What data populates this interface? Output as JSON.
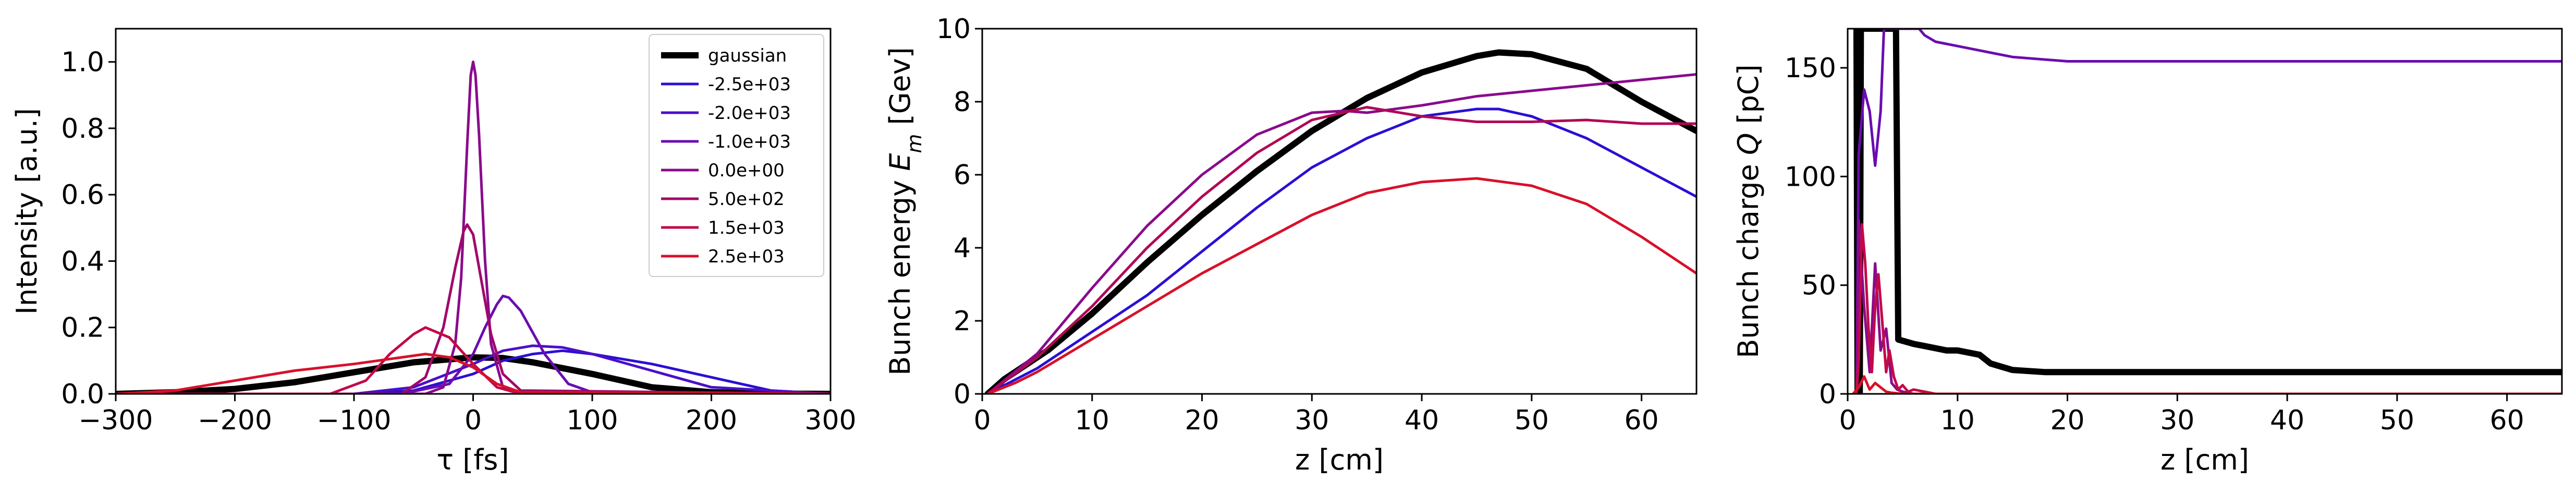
{
  "chart_data": [
    {
      "type": "line",
      "xlabel": "τ [fs]",
      "ylabel": "Intensity [a.u.]",
      "xlim": [
        -300,
        300
      ],
      "ylim": [
        0,
        1.1
      ],
      "xticks": [
        -300,
        -200,
        -100,
        0,
        100,
        200,
        300
      ],
      "xtick_labels": [
        "−300",
        "−200",
        "−100",
        "0",
        "100",
        "200",
        "300"
      ],
      "yticks": [
        0.0,
        0.2,
        0.4,
        0.6,
        0.8,
        1.0
      ],
      "ytick_labels": [
        "0.0",
        "0.2",
        "0.4",
        "0.6",
        "0.8",
        "1.0"
      ],
      "legend_position": "top-right",
      "series": [
        {
          "name": "gaussian",
          "color": "#000000",
          "bold": true,
          "x": [
            -300,
            -250,
            -200,
            -150,
            -100,
            -50,
            0,
            25,
            50,
            100,
            150,
            200,
            250,
            300
          ],
          "values": [
            0,
            0.005,
            0.015,
            0.035,
            0.065,
            0.095,
            0.11,
            0.108,
            0.095,
            0.06,
            0.02,
            0.005,
            0.001,
            0
          ]
        },
        {
          "name": "-2.5e+03",
          "color": "#2a0fd4",
          "x": [
            -300,
            -100,
            -50,
            0,
            25,
            50,
            75,
            100,
            150,
            200,
            250,
            300
          ],
          "values": [
            0,
            0,
            0.01,
            0.06,
            0.1,
            0.12,
            0.13,
            0.12,
            0.09,
            0.05,
            0.01,
            0
          ]
        },
        {
          "name": "-2.0e+03",
          "color": "#4a0fc8",
          "x": [
            -300,
            -100,
            -50,
            0,
            25,
            50,
            75,
            100,
            150,
            200,
            300
          ],
          "values": [
            0,
            0,
            0.02,
            0.09,
            0.13,
            0.145,
            0.14,
            0.12,
            0.07,
            0.02,
            0
          ]
        },
        {
          "name": "-1.0e+03",
          "color": "#6a0db0",
          "x": [
            -300,
            -60,
            -20,
            0,
            10,
            20,
            25,
            30,
            40,
            60,
            80,
            100,
            300
          ],
          "values": [
            0,
            0,
            0.03,
            0.12,
            0.2,
            0.27,
            0.295,
            0.29,
            0.25,
            0.12,
            0.03,
            0.005,
            0
          ]
        },
        {
          "name": "0.0e+00",
          "color": "#8a0a8c",
          "x": [
            -300,
            -40,
            -25,
            -15,
            -10,
            -5,
            -2,
            0,
            2,
            5,
            10,
            15,
            25,
            40,
            300
          ],
          "values": [
            0,
            0,
            0.02,
            0.15,
            0.35,
            0.75,
            0.96,
            1.0,
            0.96,
            0.78,
            0.4,
            0.15,
            0.02,
            0,
            0
          ]
        },
        {
          "name": "5.0e+02",
          "color": "#a0086a",
          "x": [
            -300,
            -60,
            -40,
            -25,
            -15,
            -8,
            -5,
            0,
            5,
            15,
            25,
            40,
            300
          ],
          "values": [
            0,
            0,
            0.05,
            0.2,
            0.38,
            0.49,
            0.51,
            0.48,
            0.38,
            0.18,
            0.06,
            0.01,
            0
          ]
        },
        {
          "name": "1.5e+03",
          "color": "#c20a48",
          "x": [
            -300,
            -120,
            -90,
            -70,
            -50,
            -40,
            -20,
            0,
            20,
            40,
            300
          ],
          "values": [
            0,
            0,
            0.04,
            0.12,
            0.18,
            0.2,
            0.17,
            0.09,
            0.02,
            0,
            0
          ]
        },
        {
          "name": "2.5e+03",
          "color": "#d8102a",
          "x": [
            -300,
            -250,
            -200,
            -150,
            -100,
            -60,
            -40,
            -20,
            0,
            20,
            40,
            300
          ],
          "values": [
            0,
            0.01,
            0.04,
            0.07,
            0.09,
            0.11,
            0.12,
            0.11,
            0.08,
            0.03,
            0.005,
            0
          ]
        }
      ]
    },
    {
      "type": "line",
      "xlabel": "z [cm]",
      "ylabel": "Bunch energy E_m [Gev]",
      "ylabel_prefix": "Bunch energy ",
      "ylabel_symbol": "E",
      "ylabel_subscript": "m",
      "ylabel_suffix": " [Gev]",
      "xlim": [
        0,
        65
      ],
      "ylim": [
        0,
        10
      ],
      "xticks": [
        0,
        10,
        20,
        30,
        40,
        50,
        60
      ],
      "xtick_labels": [
        "0",
        "10",
        "20",
        "30",
        "40",
        "50",
        "60"
      ],
      "yticks": [
        0,
        2,
        4,
        6,
        8,
        10
      ],
      "ytick_labels": [
        "0",
        "2",
        "4",
        "6",
        "8",
        "10"
      ],
      "series": [
        {
          "name": "gaussian",
          "color": "#000000",
          "bold": true,
          "x": [
            0.5,
            2,
            4,
            6,
            10,
            15,
            20,
            25,
            30,
            35,
            40,
            45,
            47,
            50,
            55,
            60,
            65
          ],
          "values": [
            0,
            0.4,
            0.8,
            1.2,
            2.2,
            3.6,
            4.9,
            6.1,
            7.2,
            8.1,
            8.8,
            9.25,
            9.35,
            9.3,
            8.9,
            8.0,
            7.2
          ]
        },
        {
          "name": "-2.5e+03",
          "color": "#2a0fd4",
          "x": [
            0.5,
            5,
            10,
            15,
            20,
            25,
            30,
            35,
            40,
            45,
            47,
            50,
            55,
            60,
            65
          ],
          "values": [
            0,
            0.7,
            1.7,
            2.7,
            3.9,
            5.1,
            6.2,
            7.0,
            7.6,
            7.8,
            7.8,
            7.6,
            7.0,
            6.2,
            5.4
          ]
        },
        {
          "name": "0.0e+00",
          "color": "#8a0a8c",
          "x": [
            0.5,
            5,
            10,
            15,
            20,
            25,
            30,
            33,
            35,
            40,
            45,
            50,
            55,
            60,
            65
          ],
          "values": [
            0,
            1.1,
            2.9,
            4.6,
            6.0,
            7.1,
            7.7,
            7.75,
            7.7,
            7.9,
            8.15,
            8.3,
            8.45,
            8.6,
            8.75
          ]
        },
        {
          "name": "5.0e+02",
          "color": "#b00856",
          "x": [
            0.5,
            5,
            10,
            15,
            20,
            25,
            30,
            35,
            40,
            45,
            50,
            55,
            60,
            65
          ],
          "values": [
            0,
            1.0,
            2.4,
            4.0,
            5.4,
            6.6,
            7.5,
            7.85,
            7.6,
            7.45,
            7.45,
            7.5,
            7.4,
            7.4
          ]
        },
        {
          "name": "2.5e+03",
          "color": "#d8102a",
          "x": [
            0.5,
            3,
            5,
            10,
            15,
            20,
            25,
            30,
            35,
            40,
            45,
            50,
            55,
            60,
            65
          ],
          "values": [
            0,
            0.3,
            0.6,
            1.5,
            2.4,
            3.3,
            4.1,
            4.9,
            5.5,
            5.8,
            5.9,
            5.7,
            5.2,
            4.3,
            3.3
          ]
        }
      ]
    },
    {
      "type": "line",
      "xlabel": "z [cm]",
      "ylabel": "Bunch charge Q [pC]",
      "ylabel_prefix": "Bunch charge ",
      "ylabel_symbol": "Q",
      "ylabel_suffix": " [pC]",
      "xlim": [
        0,
        65
      ],
      "ylim": [
        0,
        168
      ],
      "xticks": [
        0,
        10,
        20,
        30,
        40,
        50,
        60
      ],
      "xtick_labels": [
        "0",
        "10",
        "20",
        "30",
        "40",
        "50",
        "60"
      ],
      "yticks": [
        0,
        50,
        100,
        150
      ],
      "ytick_labels": [
        "0",
        "50",
        "100",
        "150"
      ],
      "series": [
        {
          "name": "gaussian",
          "color": "#000000",
          "bold": true,
          "x": [
            0.8,
            0.9,
            1.1,
            1.2,
            3.8,
            4.0,
            4.4,
            4.6,
            6,
            8,
            9,
            10,
            12,
            13,
            15,
            18,
            30,
            65
          ],
          "values": [
            168,
            0,
            0,
            168,
            168,
            168,
            168,
            25,
            23,
            21,
            20,
            20,
            18,
            14,
            11,
            10,
            10,
            10
          ]
        },
        {
          "name": "-1.0e+03",
          "color": "#6a0db0",
          "x": [
            0.8,
            1.0,
            1.5,
            2.0,
            2.5,
            3.0,
            3.3,
            3.6,
            3.9,
            4.1,
            5,
            6.5,
            7,
            8,
            10,
            12,
            15,
            20,
            30,
            65
          ],
          "values": [
            0,
            110,
            140,
            130,
            105,
            130,
            168,
            168,
            168,
            168,
            168,
            168,
            165,
            162,
            160,
            158,
            155,
            153,
            153,
            153
          ]
        },
        {
          "name": "0.0e+00",
          "color": "#8a0a8c",
          "x": [
            0.8,
            1.0,
            1.5,
            2.0,
            2.5,
            3.0,
            3.5,
            4.0,
            4.5,
            5,
            6,
            8,
            10,
            65
          ],
          "values": [
            0,
            80,
            40,
            10,
            60,
            20,
            30,
            5,
            2,
            1,
            0,
            0,
            0,
            0
          ]
        },
        {
          "name": "1.5e+03",
          "color": "#c20a48",
          "x": [
            0.8,
            1.0,
            1.3,
            1.6,
            1.9,
            2.2,
            2.5,
            2.8,
            3.2,
            3.5,
            3.8,
            4.2,
            4.6,
            5,
            5.5,
            6,
            8,
            65
          ],
          "values": [
            0,
            15,
            78,
            60,
            30,
            10,
            40,
            55,
            30,
            10,
            20,
            8,
            2,
            4,
            1,
            2,
            0,
            0
          ]
        },
        {
          "name": "2.5e+03",
          "color": "#d8102a",
          "x": [
            0.5,
            1.0,
            1.5,
            2.0,
            2.5,
            3.0,
            3.5,
            4.0,
            5,
            8,
            65
          ],
          "values": [
            0,
            3,
            8,
            2,
            5,
            3,
            1,
            0.5,
            0,
            0,
            0
          ]
        }
      ]
    }
  ]
}
